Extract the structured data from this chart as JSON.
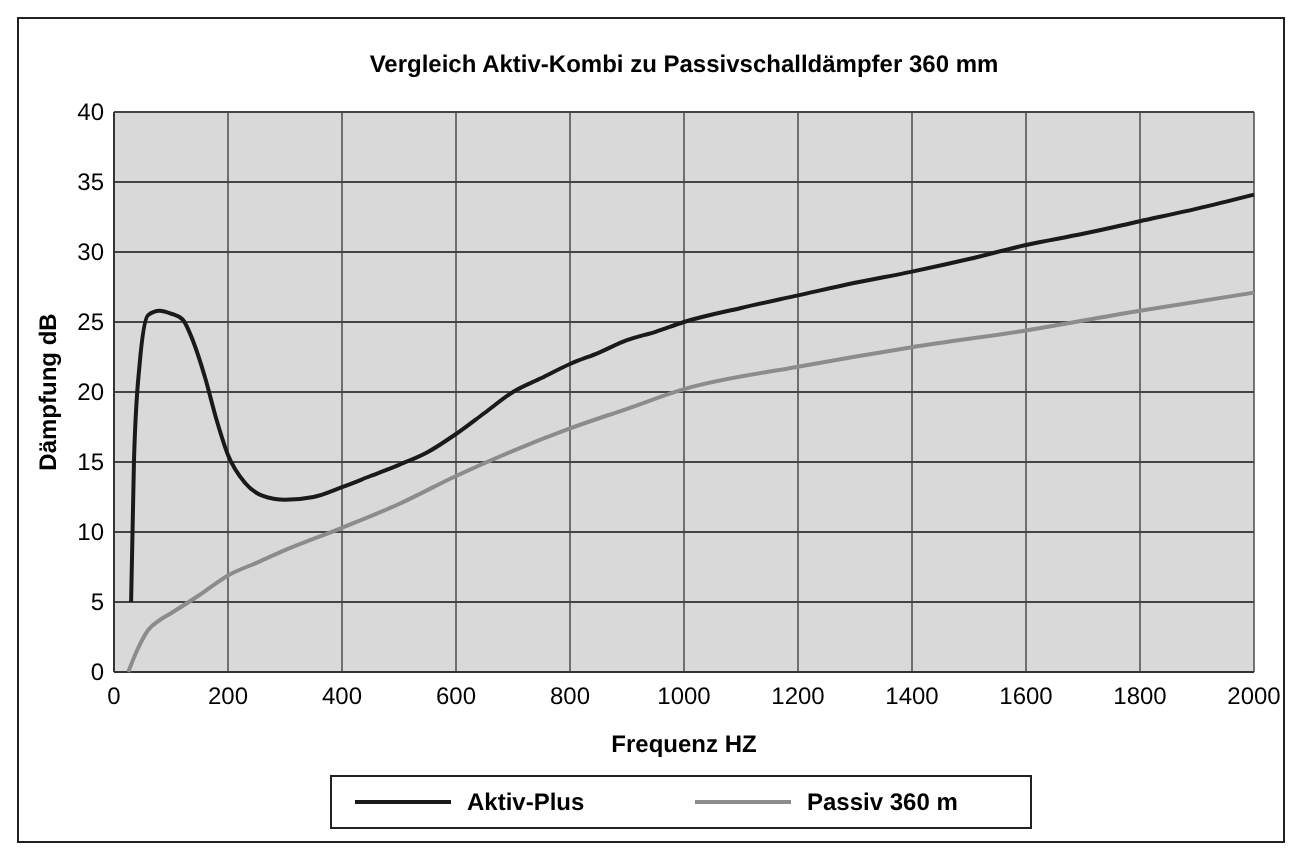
{
  "chart_data": {
    "type": "line",
    "title": "Vergleich Aktiv-Kombi zu Passivschalldämpfer 360 mm",
    "xlabel": "Frequenz HZ",
    "ylabel": "Dämpfung dB",
    "xlim": [
      0,
      2000
    ],
    "xticks": [
      0,
      200,
      400,
      600,
      800,
      1000,
      1200,
      1400,
      1600,
      1800,
      2000
    ],
    "ylim": [
      0,
      40
    ],
    "yticks": [
      0,
      5,
      10,
      15,
      20,
      25,
      30,
      35,
      40
    ],
    "grid": true,
    "legend": "bottom",
    "marker": "none",
    "line_style": "solid",
    "series": [
      {
        "name": "Aktiv-Plus",
        "color": "#1a1a1a",
        "x": [
          30,
          35,
          45,
          60,
          80,
          100,
          120,
          140,
          160,
          180,
          200,
          230,
          260,
          300,
          350,
          400,
          450,
          500,
          550,
          600,
          650,
          700,
          750,
          800,
          850,
          900,
          950,
          1000,
          1100,
          1200,
          1300,
          1400,
          1500,
          1600,
          1700,
          1800,
          1900,
          2000
        ],
        "values": [
          5,
          15,
          22,
          25.5,
          25.8,
          25.6,
          25.2,
          23.5,
          21,
          18,
          15.5,
          13.5,
          12.6,
          12.3,
          12.5,
          13.2,
          14,
          14.8,
          15.7,
          17,
          18.5,
          20,
          21,
          22,
          22.8,
          23.7,
          24.3,
          25,
          26,
          26.9,
          27.8,
          28.6,
          29.5,
          30.5,
          31.3,
          32.2,
          33.1,
          34.1
        ]
      },
      {
        "name": "Passiv 360 m",
        "color": "#8c8c8c",
        "x": [
          25,
          40,
          60,
          80,
          100,
          150,
          200,
          250,
          300,
          400,
          500,
          600,
          700,
          800,
          900,
          1000,
          1200,
          1400,
          1600,
          1800,
          2000
        ],
        "values": [
          0,
          1.5,
          3,
          3.7,
          4.2,
          5.5,
          6.9,
          7.8,
          8.7,
          10.3,
          12,
          14,
          15.8,
          17.4,
          18.8,
          20.2,
          21.8,
          23.2,
          24.4,
          25.8,
          27.1
        ]
      }
    ]
  }
}
